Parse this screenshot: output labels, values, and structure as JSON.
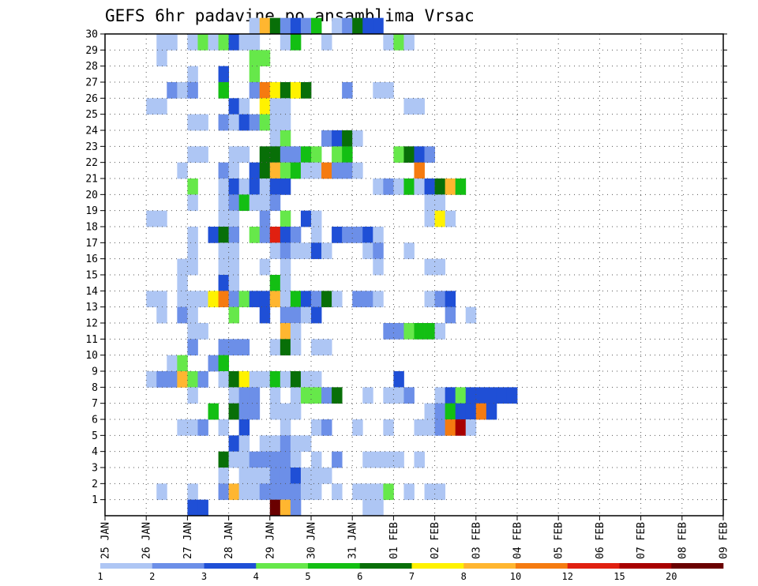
{
  "chart_data": {
    "type": "heatmap",
    "title": "GEFS 6hr padavine po ansamblima Vrsac",
    "xlabel": "",
    "ylabel": "",
    "x_ticks": [
      "25 JAN",
      "26 JAN",
      "27 JAN",
      "28 JAN",
      "29 JAN",
      "30 JAN",
      "31 JAN",
      "01 FEB",
      "02 FEB",
      "03 FEB",
      "04 FEB",
      "05 FEB",
      "06 FEB",
      "07 FEB",
      "08 FEB",
      "09 FEB"
    ],
    "y_ticks": [
      1,
      2,
      3,
      4,
      5,
      6,
      7,
      8,
      9,
      10,
      11,
      12,
      13,
      14,
      15,
      16,
      17,
      18,
      19,
      20,
      21,
      22,
      23,
      24,
      25,
      26,
      27,
      28,
      29,
      30
    ],
    "x_range": [
      "25 JAN 00Z",
      "09 FEB 00Z"
    ],
    "time_step_hours": 6,
    "y_range": [
      0,
      30
    ],
    "grid": true,
    "legend_position": "bottom",
    "colorbar": {
      "levels": [
        1,
        2,
        3,
        4,
        5,
        6,
        7,
        8,
        10,
        12,
        15,
        20
      ],
      "colors": [
        "#aec6f4",
        "#6c8fe8",
        "#1f4fd6",
        "#66e84a",
        "#13bf13",
        "#086f08",
        "#fff200",
        "#ffb630",
        "#f57b10",
        "#e02010",
        "#a80000",
        "#6a0000"
      ]
    },
    "cells": [
      [
        30,
        14,
        0
      ],
      [
        30,
        15,
        7
      ],
      [
        30,
        16,
        5
      ],
      [
        30,
        17,
        1
      ],
      [
        30,
        18,
        2
      ],
      [
        30,
        19,
        1
      ],
      [
        30,
        20,
        4
      ],
      [
        30,
        22,
        0
      ],
      [
        30,
        23,
        1
      ],
      [
        30,
        24,
        5
      ],
      [
        30,
        25,
        2
      ],
      [
        30,
        26,
        2
      ],
      [
        29,
        5,
        0
      ],
      [
        29,
        6,
        0
      ],
      [
        29,
        8,
        0
      ],
      [
        29,
        9,
        3
      ],
      [
        29,
        10,
        0
      ],
      [
        29,
        11,
        3
      ],
      [
        29,
        12,
        2
      ],
      [
        29,
        13,
        0
      ],
      [
        29,
        14,
        0
      ],
      [
        29,
        17,
        0
      ],
      [
        29,
        18,
        4
      ],
      [
        29,
        21,
        0
      ],
      [
        29,
        27,
        0
      ],
      [
        29,
        28,
        3
      ],
      [
        29,
        29,
        0
      ],
      [
        28,
        5,
        0
      ],
      [
        28,
        14,
        3
      ],
      [
        28,
        15,
        3
      ],
      [
        27,
        8,
        0
      ],
      [
        27,
        11,
        2
      ],
      [
        27,
        14,
        3
      ],
      [
        26,
        6,
        1
      ],
      [
        26,
        7,
        0
      ],
      [
        26,
        8,
        1
      ],
      [
        26,
        11,
        4
      ],
      [
        26,
        14,
        1
      ],
      [
        26,
        15,
        8
      ],
      [
        26,
        16,
        6
      ],
      [
        26,
        17,
        5
      ],
      [
        26,
        18,
        6
      ],
      [
        26,
        19,
        5
      ],
      [
        26,
        23,
        1
      ],
      [
        26,
        26,
        0
      ],
      [
        26,
        27,
        0
      ],
      [
        25,
        4,
        0
      ],
      [
        25,
        5,
        0
      ],
      [
        25,
        12,
        2
      ],
      [
        25,
        13,
        0
      ],
      [
        25,
        15,
        6
      ],
      [
        25,
        16,
        0
      ],
      [
        25,
        17,
        0
      ],
      [
        25,
        29,
        0
      ],
      [
        25,
        30,
        0
      ],
      [
        24,
        8,
        0
      ],
      [
        24,
        9,
        0
      ],
      [
        24,
        11,
        1
      ],
      [
        24,
        12,
        0
      ],
      [
        24,
        13,
        2
      ],
      [
        24,
        14,
        1
      ],
      [
        24,
        15,
        3
      ],
      [
        24,
        16,
        0
      ],
      [
        24,
        17,
        0
      ],
      [
        23,
        16,
        0
      ],
      [
        23,
        17,
        3
      ],
      [
        23,
        21,
        1
      ],
      [
        23,
        22,
        2
      ],
      [
        23,
        23,
        5
      ],
      [
        23,
        24,
        0
      ],
      [
        22,
        8,
        0
      ],
      [
        22,
        9,
        0
      ],
      [
        22,
        12,
        0
      ],
      [
        22,
        13,
        0
      ],
      [
        22,
        15,
        5
      ],
      [
        22,
        16,
        5
      ],
      [
        22,
        17,
        1
      ],
      [
        22,
        18,
        1
      ],
      [
        22,
        19,
        4
      ],
      [
        22,
        20,
        3
      ],
      [
        22,
        22,
        3
      ],
      [
        22,
        23,
        4
      ],
      [
        22,
        28,
        3
      ],
      [
        22,
        29,
        5
      ],
      [
        22,
        30,
        2
      ],
      [
        22,
        31,
        1
      ],
      [
        21,
        7,
        0
      ],
      [
        21,
        11,
        1
      ],
      [
        21,
        12,
        0
      ],
      [
        21,
        14,
        2
      ],
      [
        21,
        15,
        5
      ],
      [
        21,
        16,
        7
      ],
      [
        21,
        17,
        3
      ],
      [
        21,
        18,
        4
      ],
      [
        21,
        19,
        0
      ],
      [
        21,
        20,
        0
      ],
      [
        21,
        21,
        8
      ],
      [
        21,
        22,
        1
      ],
      [
        21,
        23,
        1
      ],
      [
        21,
        24,
        0
      ],
      [
        21,
        30,
        8
      ],
      [
        20,
        8,
        3
      ],
      [
        20,
        11,
        0
      ],
      [
        20,
        12,
        2
      ],
      [
        20,
        13,
        0
      ],
      [
        20,
        14,
        2
      ],
      [
        20,
        15,
        0
      ],
      [
        20,
        16,
        2
      ],
      [
        20,
        17,
        2
      ],
      [
        20,
        26,
        0
      ],
      [
        20,
        27,
        1
      ],
      [
        20,
        28,
        0
      ],
      [
        20,
        29,
        4
      ],
      [
        20,
        30,
        0
      ],
      [
        20,
        31,
        2
      ],
      [
        20,
        32,
        5
      ],
      [
        20,
        33,
        7
      ],
      [
        20,
        34,
        4
      ],
      [
        19,
        8,
        0
      ],
      [
        19,
        11,
        0
      ],
      [
        19,
        12,
        1
      ],
      [
        19,
        13,
        4
      ],
      [
        19,
        14,
        0
      ],
      [
        19,
        15,
        0
      ],
      [
        19,
        16,
        1
      ],
      [
        19,
        31,
        0
      ],
      [
        19,
        32,
        0
      ],
      [
        18,
        4,
        0
      ],
      [
        18,
        5,
        0
      ],
      [
        18,
        11,
        0
      ],
      [
        18,
        12,
        0
      ],
      [
        18,
        15,
        1
      ],
      [
        18,
        17,
        3
      ],
      [
        18,
        19,
        2
      ],
      [
        18,
        20,
        0
      ],
      [
        18,
        31,
        0
      ],
      [
        18,
        32,
        6
      ],
      [
        18,
        33,
        0
      ],
      [
        17,
        8,
        0
      ],
      [
        17,
        10,
        2
      ],
      [
        17,
        11,
        5
      ],
      [
        17,
        12,
        1
      ],
      [
        17,
        14,
        3
      ],
      [
        17,
        15,
        1
      ],
      [
        17,
        16,
        9
      ],
      [
        17,
        17,
        2
      ],
      [
        17,
        18,
        1
      ],
      [
        17,
        20,
        0
      ],
      [
        17,
        22,
        2
      ],
      [
        17,
        23,
        1
      ],
      [
        17,
        24,
        1
      ],
      [
        17,
        25,
        2
      ],
      [
        17,
        26,
        0
      ],
      [
        16,
        8,
        0
      ],
      [
        16,
        11,
        0
      ],
      [
        16,
        12,
        0
      ],
      [
        16,
        16,
        0
      ],
      [
        16,
        17,
        1
      ],
      [
        16,
        18,
        0
      ],
      [
        16,
        19,
        0
      ],
      [
        16,
        20,
        2
      ],
      [
        16,
        21,
        0
      ],
      [
        16,
        25,
        0
      ],
      [
        16,
        26,
        1
      ],
      [
        16,
        29,
        0
      ],
      [
        15,
        7,
        0
      ],
      [
        15,
        8,
        0
      ],
      [
        15,
        11,
        0
      ],
      [
        15,
        12,
        0
      ],
      [
        15,
        15,
        0
      ],
      [
        15,
        17,
        0
      ],
      [
        15,
        26,
        0
      ],
      [
        15,
        31,
        0
      ],
      [
        15,
        32,
        0
      ],
      [
        14,
        7,
        0
      ],
      [
        14,
        11,
        2
      ],
      [
        14,
        12,
        0
      ],
      [
        14,
        16,
        4
      ],
      [
        14,
        17,
        0
      ],
      [
        13,
        4,
        0
      ],
      [
        13,
        5,
        0
      ],
      [
        13,
        7,
        0
      ],
      [
        13,
        8,
        0
      ],
      [
        13,
        9,
        0
      ],
      [
        13,
        10,
        6
      ],
      [
        13,
        11,
        8
      ],
      [
        13,
        12,
        1
      ],
      [
        13,
        13,
        3
      ],
      [
        13,
        14,
        2
      ],
      [
        13,
        15,
        2
      ],
      [
        13,
        16,
        7
      ],
      [
        13,
        17,
        0
      ],
      [
        13,
        18,
        4
      ],
      [
        13,
        19,
        2
      ],
      [
        13,
        20,
        1
      ],
      [
        13,
        21,
        5
      ],
      [
        13,
        22,
        0
      ],
      [
        13,
        24,
        1
      ],
      [
        13,
        25,
        1
      ],
      [
        13,
        26,
        0
      ],
      [
        13,
        31,
        0
      ],
      [
        13,
        32,
        1
      ],
      [
        13,
        33,
        2
      ],
      [
        12,
        5,
        0
      ],
      [
        12,
        7,
        1
      ],
      [
        12,
        8,
        0
      ],
      [
        12,
        12,
        3
      ],
      [
        12,
        15,
        2
      ],
      [
        12,
        17,
        1
      ],
      [
        12,
        18,
        1
      ],
      [
        12,
        19,
        0
      ],
      [
        12,
        20,
        2
      ],
      [
        12,
        33,
        1
      ],
      [
        12,
        35,
        0
      ],
      [
        11,
        8,
        0
      ],
      [
        11,
        9,
        0
      ],
      [
        11,
        17,
        7
      ],
      [
        11,
        18,
        0
      ],
      [
        11,
        27,
        1
      ],
      [
        11,
        28,
        1
      ],
      [
        11,
        29,
        3
      ],
      [
        11,
        30,
        4
      ],
      [
        11,
        31,
        4
      ],
      [
        11,
        32,
        0
      ],
      [
        10,
        8,
        1
      ],
      [
        10,
        11,
        1
      ],
      [
        10,
        12,
        1
      ],
      [
        10,
        13,
        1
      ],
      [
        10,
        16,
        0
      ],
      [
        10,
        17,
        5
      ],
      [
        10,
        18,
        0
      ],
      [
        10,
        20,
        0
      ],
      [
        10,
        21,
        0
      ],
      [
        9,
        6,
        0
      ],
      [
        9,
        7,
        3
      ],
      [
        9,
        10,
        1
      ],
      [
        9,
        11,
        4
      ],
      [
        8,
        4,
        0
      ],
      [
        8,
        5,
        1
      ],
      [
        8,
        6,
        1
      ],
      [
        8,
        7,
        7
      ],
      [
        8,
        8,
        3
      ],
      [
        8,
        9,
        1
      ],
      [
        8,
        11,
        0
      ],
      [
        8,
        12,
        5
      ],
      [
        8,
        13,
        6
      ],
      [
        8,
        14,
        0
      ],
      [
        8,
        15,
        0
      ],
      [
        8,
        16,
        4
      ],
      [
        8,
        17,
        0
      ],
      [
        8,
        18,
        5
      ],
      [
        8,
        19,
        0
      ],
      [
        8,
        20,
        0
      ],
      [
        8,
        28,
        2
      ],
      [
        7,
        8,
        0
      ],
      [
        7,
        12,
        0
      ],
      [
        7,
        13,
        1
      ],
      [
        7,
        14,
        1
      ],
      [
        7,
        16,
        0
      ],
      [
        7,
        18,
        0
      ],
      [
        7,
        19,
        3
      ],
      [
        7,
        20,
        3
      ],
      [
        7,
        21,
        1
      ],
      [
        7,
        22,
        5
      ],
      [
        7,
        25,
        0
      ],
      [
        7,
        27,
        0
      ],
      [
        7,
        28,
        0
      ],
      [
        7,
        29,
        1
      ],
      [
        7,
        32,
        0
      ],
      [
        7,
        33,
        2
      ],
      [
        7,
        34,
        3
      ],
      [
        7,
        35,
        2
      ],
      [
        7,
        36,
        2
      ],
      [
        7,
        37,
        2
      ],
      [
        7,
        38,
        2
      ],
      [
        7,
        39,
        2
      ],
      [
        6,
        10,
        4
      ],
      [
        6,
        12,
        5
      ],
      [
        6,
        13,
        1
      ],
      [
        6,
        14,
        1
      ],
      [
        6,
        16,
        0
      ],
      [
        6,
        17,
        0
      ],
      [
        6,
        18,
        0
      ],
      [
        6,
        31,
        0
      ],
      [
        6,
        32,
        1
      ],
      [
        6,
        33,
        4
      ],
      [
        6,
        34,
        2
      ],
      [
        6,
        35,
        2
      ],
      [
        6,
        36,
        8
      ],
      [
        6,
        37,
        2
      ],
      [
        5,
        7,
        0
      ],
      [
        5,
        8,
        0
      ],
      [
        5,
        9,
        1
      ],
      [
        5,
        11,
        0
      ],
      [
        5,
        13,
        2
      ],
      [
        5,
        17,
        0
      ],
      [
        5,
        20,
        0
      ],
      [
        5,
        21,
        1
      ],
      [
        5,
        24,
        0
      ],
      [
        5,
        27,
        0
      ],
      [
        5,
        30,
        0
      ],
      [
        5,
        31,
        0
      ],
      [
        5,
        32,
        1
      ],
      [
        5,
        33,
        8
      ],
      [
        5,
        34,
        10
      ],
      [
        5,
        35,
        0
      ],
      [
        4,
        12,
        2
      ],
      [
        4,
        13,
        0
      ],
      [
        4,
        15,
        0
      ],
      [
        4,
        16,
        0
      ],
      [
        4,
        17,
        1
      ],
      [
        4,
        18,
        0
      ],
      [
        4,
        19,
        0
      ],
      [
        3,
        11,
        5
      ],
      [
        3,
        12,
        0
      ],
      [
        3,
        13,
        0
      ],
      [
        3,
        14,
        1
      ],
      [
        3,
        15,
        1
      ],
      [
        3,
        16,
        1
      ],
      [
        3,
        17,
        1
      ],
      [
        3,
        18,
        0
      ],
      [
        3,
        20,
        0
      ],
      [
        3,
        22,
        1
      ],
      [
        3,
        25,
        0
      ],
      [
        3,
        26,
        0
      ],
      [
        3,
        27,
        0
      ],
      [
        3,
        28,
        0
      ],
      [
        3,
        30,
        0
      ],
      [
        2,
        11,
        0
      ],
      [
        2,
        13,
        0
      ],
      [
        2,
        14,
        0
      ],
      [
        2,
        15,
        0
      ],
      [
        2,
        16,
        1
      ],
      [
        2,
        17,
        1
      ],
      [
        2,
        18,
        2
      ],
      [
        2,
        19,
        0
      ],
      [
        2,
        20,
        0
      ],
      [
        2,
        21,
        0
      ],
      [
        1,
        5,
        0
      ],
      [
        1,
        8,
        0
      ],
      [
        1,
        11,
        1
      ],
      [
        1,
        12,
        7
      ],
      [
        1,
        13,
        0
      ],
      [
        1,
        14,
        0
      ],
      [
        1,
        15,
        1
      ],
      [
        1,
        16,
        1
      ],
      [
        1,
        17,
        1
      ],
      [
        1,
        18,
        1
      ],
      [
        1,
        19,
        0
      ],
      [
        1,
        20,
        0
      ],
      [
        1,
        22,
        0
      ],
      [
        1,
        24,
        0
      ],
      [
        1,
        25,
        0
      ],
      [
        1,
        26,
        0
      ],
      [
        1,
        27,
        3
      ],
      [
        1,
        29,
        0
      ],
      [
        1,
        31,
        0
      ],
      [
        1,
        32,
        0
      ],
      [
        0,
        8,
        2
      ],
      [
        0,
        9,
        2
      ],
      [
        0,
        16,
        11
      ],
      [
        0,
        17,
        7
      ],
      [
        0,
        18,
        1
      ],
      [
        0,
        25,
        0
      ],
      [
        0,
        26,
        0
      ]
    ]
  }
}
